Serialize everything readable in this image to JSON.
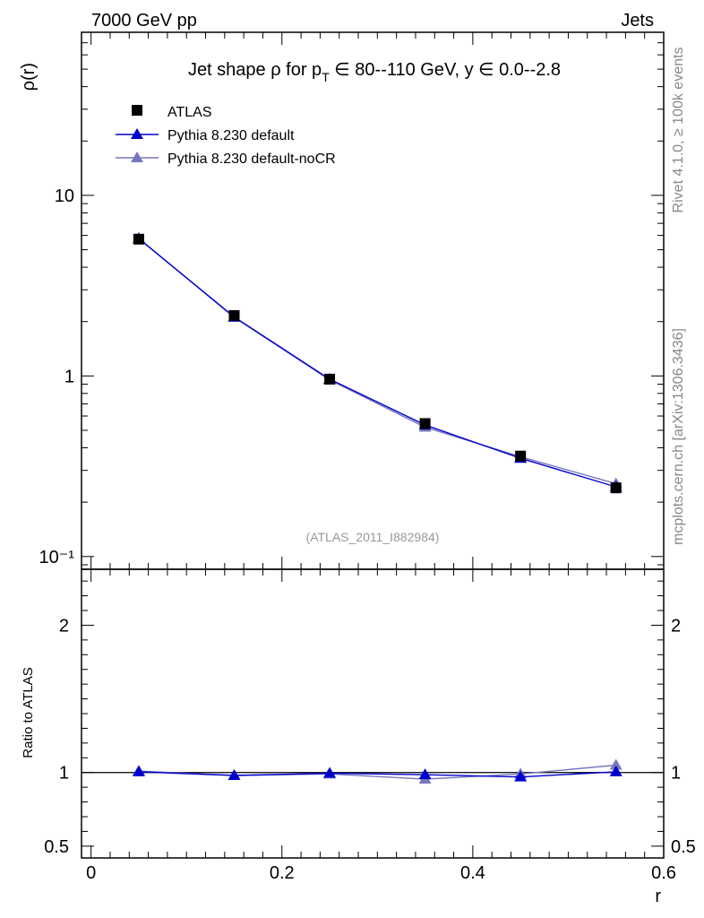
{
  "header": {
    "left": "7000 GeV pp",
    "right": "Jets"
  },
  "side": {
    "rivet": "Rivet 4.1.0, ≥ 100k events",
    "mcplots": "mcplots.cern.ch [arXiv:1306.3436]"
  },
  "chart_data": [
    {
      "type": "line",
      "panel": "main",
      "title": "Jet shape ρ for p_T ∈ 80--110 GeV, y ∈ 0.0--2.8",
      "title_parts": {
        "a": "Jet shape ρ for p",
        "sub": "T",
        "b": " ∈ 80--110 GeV, y ∈ 0.0--2.8"
      },
      "ylabel": "ρ(r)",
      "yscale": "log",
      "ylim": [
        0.085,
        80
      ],
      "xlim": [
        -0.01,
        0.6
      ],
      "y_ticks": [
        {
          "value": 10,
          "label": "10"
        },
        {
          "value": 1,
          "label": "1"
        },
        {
          "value": 0.1,
          "label": "10⁻¹"
        }
      ],
      "watermark": "(ATLAS_2011_I882984)",
      "legend_position": "top-left",
      "x": [
        0.05,
        0.15,
        0.25,
        0.35,
        0.45,
        0.55
      ],
      "series": [
        {
          "name": "ATLAS",
          "marker": "square",
          "color": "#000000",
          "values": [
            5.72,
            2.16,
            0.96,
            0.545,
            0.36,
            0.24
          ]
        },
        {
          "name": "Pythia 8.230 default",
          "marker": "triangle",
          "color": "#0000cc",
          "values": [
            5.76,
            2.12,
            0.96,
            0.535,
            0.35,
            0.243
          ]
        },
        {
          "name": "Pythia 8.230 default-noCR",
          "marker": "triangle",
          "color": "#7777bb",
          "values": [
            5.78,
            2.11,
            0.95,
            0.52,
            0.357,
            0.253
          ]
        }
      ]
    },
    {
      "type": "line",
      "panel": "ratio",
      "ylabel": "Ratio to ATLAS",
      "xlabel": "r",
      "ylim": [
        0.42,
        2.38
      ],
      "xlim": [
        -0.01,
        0.6
      ],
      "y_ticks": [
        {
          "value": 2,
          "label": "2"
        },
        {
          "value": 1,
          "label": "1"
        },
        {
          "value": 0.5,
          "label": "0.5"
        }
      ],
      "x_ticks": [
        {
          "value": 0,
          "label": "0"
        },
        {
          "value": 0.2,
          "label": "0.2"
        },
        {
          "value": 0.4,
          "label": "0.4"
        },
        {
          "value": 0.6,
          "label": "0.6"
        }
      ],
      "x": [
        0.05,
        0.15,
        0.25,
        0.35,
        0.45,
        0.55
      ],
      "series": [
        {
          "name": "Pythia 8.230 default",
          "color": "#0000cc",
          "values": [
            1.005,
            0.98,
            0.995,
            0.985,
            0.97,
            1.005
          ]
        },
        {
          "name": "Pythia 8.230 default-noCR",
          "color": "#7777bb",
          "values": [
            1.01,
            0.98,
            0.99,
            0.955,
            0.99,
            1.05
          ]
        }
      ]
    }
  ]
}
